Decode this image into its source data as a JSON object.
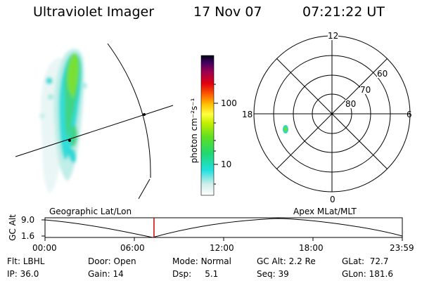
{
  "header": {
    "title": "Ultraviolet Imager",
    "date": "17 Nov 07",
    "time": "07:21:22 UT"
  },
  "colorbar": {
    "unit_label": "photon cm⁻²s⁻¹",
    "ticks": [
      "100",
      "10"
    ]
  },
  "polar_plot": {
    "mlt_labels": {
      "top": "12",
      "bottom": "0",
      "left": "18",
      "right": "6"
    },
    "lat_labels": [
      "60",
      "70",
      "80"
    ]
  },
  "timeline": {
    "left_label": "Geographic Lat/Lon",
    "right_label": "Apex MLat/MLT",
    "y_axis_label": "GC Alt",
    "y_ticks": [
      "9.0",
      "1.6"
    ],
    "x_ticks": [
      "00:00",
      "06:00",
      "12:00",
      "18:00",
      "23:59"
    ],
    "current_time_fraction": 0.305,
    "accent_color": "#cc0000"
  },
  "status": {
    "row1": [
      {
        "key": "Flt:",
        "val": "LBHL"
      },
      {
        "key": "Door:",
        "val": "Open"
      },
      {
        "key": "Mode:",
        "val": "Normal"
      },
      {
        "key": "GC Alt:",
        "val": "2.2 Re"
      },
      {
        "key": "GLat:",
        "val": "72.7"
      }
    ],
    "row2": [
      {
        "key": "IP:",
        "val": "36.0"
      },
      {
        "key": "Gain:",
        "val": "14"
      },
      {
        "key": "Dsp:",
        "val": "5.1"
      },
      {
        "key": "Seq:",
        "val": "39"
      },
      {
        "key": "GLon:",
        "val": "181.6"
      }
    ]
  }
}
